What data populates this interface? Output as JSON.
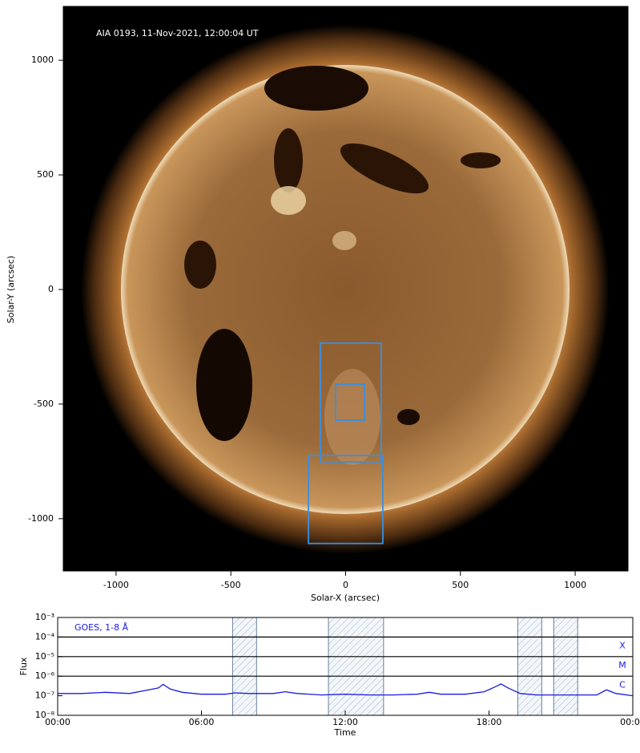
{
  "chart_data": [
    {
      "type": "image-axes",
      "annotation": "AIA 0193, 11-Nov-2021, 12:00:04 UT",
      "xlabel": "Solar-X (arcsec)",
      "ylabel": "Solar-Y (arcsec)",
      "xlim": [
        -1230,
        1230
      ],
      "ylim": [
        -1228,
        1235
      ],
      "xticks": [
        -1000,
        -500,
        0,
        500,
        1000
      ],
      "yticks": [
        -1000,
        -500,
        0,
        500,
        1000
      ],
      "box_color": "#3a8fe0",
      "boxes": [
        {
          "x": [
            -110,
            155
          ],
          "y": [
            -752,
            -234
          ]
        },
        {
          "x": [
            -44,
            82
          ],
          "y": [
            -570,
            -413
          ]
        },
        {
          "x": [
            -162,
            162
          ],
          "y": [
            -1108,
            -724
          ]
        }
      ]
    },
    {
      "type": "line",
      "annotation": "GOES, 1-8 Å",
      "xlabel": "Time",
      "ylabel": "Flux",
      "log_y": true,
      "xlim": [
        0,
        24
      ],
      "ylim": [
        1e-08,
        0.001
      ],
      "xticks": [
        {
          "value": 0,
          "label": "00:00"
        },
        {
          "value": 6,
          "label": "06:00"
        },
        {
          "value": 12,
          "label": "12:00"
        },
        {
          "value": 18,
          "label": "18:00"
        },
        {
          "value": 24,
          "label": "00:00"
        }
      ],
      "yticks": [
        {
          "value": 1e-08,
          "label": "10⁻⁸"
        },
        {
          "value": 1e-07,
          "label": "10⁻⁷"
        },
        {
          "value": 1e-06,
          "label": "10⁻⁶"
        },
        {
          "value": 1e-05,
          "label": "10⁻⁵"
        },
        {
          "value": 0.0001,
          "label": "10⁻⁴"
        },
        {
          "value": 0.001,
          "label": "10⁻³"
        }
      ],
      "flare_classes": [
        {
          "label": "X",
          "level": 0.0001
        },
        {
          "label": "M",
          "level": 1e-05
        },
        {
          "label": "C",
          "level": 1e-06
        }
      ],
      "shaded": [
        [
          7.3,
          8.3
        ],
        [
          11.3,
          13.6
        ],
        [
          19.2,
          20.2
        ],
        [
          20.7,
          21.7
        ]
      ],
      "x": [
        0,
        1,
        2,
        3,
        3.8,
        4.2,
        4.4,
        4.7,
        5.2,
        6,
        7,
        7.4,
        8,
        9,
        9.5,
        10,
        11,
        12,
        13,
        14,
        15,
        15.5,
        16,
        17,
        17.8,
        18.3,
        18.5,
        18.8,
        19.3,
        20,
        21,
        22,
        22.5,
        22.9,
        23.3,
        24
      ],
      "series": [
        {
          "color": "#1a1ae0",
          "values": [
            1.3e-07,
            1.3e-07,
            1.5e-07,
            1.3e-07,
            2e-07,
            2.5e-07,
            3.8e-07,
            2.2e-07,
            1.5e-07,
            1.2e-07,
            1.2e-07,
            1.4e-07,
            1.3e-07,
            1.3e-07,
            1.6e-07,
            1.3e-07,
            1.1e-07,
            1.2e-07,
            1.1e-07,
            1.1e-07,
            1.2e-07,
            1.5e-07,
            1.2e-07,
            1.2e-07,
            1.6e-07,
            3e-07,
            4e-07,
            2.5e-07,
            1.3e-07,
            1.1e-07,
            1.1e-07,
            1.1e-07,
            1.1e-07,
            2e-07,
            1.3e-07,
            1e-07
          ]
        }
      ]
    }
  ]
}
